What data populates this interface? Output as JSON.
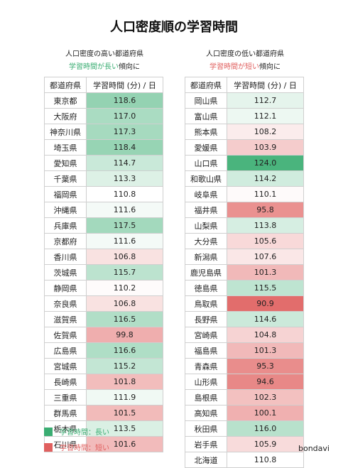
{
  "title": "人口密度順の学習時間",
  "colors": {
    "long": "#3aad72",
    "short": "#e0605f",
    "neutral": "#ffffff"
  },
  "chart_data": [
    {
      "type": "table",
      "subtitle_line1": "人口密度の高い都道府県",
      "subtitle_accent": "学習時間が長い",
      "subtitle_suffix": "傾向に",
      "columns": [
        "都道府県",
        "学習時間 (分) / 日"
      ],
      "rows": [
        [
          "東京都",
          118.6
        ],
        [
          "大阪府",
          117.0
        ],
        [
          "神奈川県",
          117.3
        ],
        [
          "埼玉県",
          118.4
        ],
        [
          "愛知県",
          114.7
        ],
        [
          "千葉県",
          113.3
        ],
        [
          "福岡県",
          110.8
        ],
        [
          "沖縄県",
          111.6
        ],
        [
          "兵庫県",
          117.5
        ],
        [
          "京都府",
          111.6
        ],
        [
          "香川県",
          106.8
        ],
        [
          "茨城県",
          115.7
        ],
        [
          "静岡県",
          110.2
        ],
        [
          "奈良県",
          106.8
        ],
        [
          "滋賀県",
          116.5
        ],
        [
          "佐賀県",
          99.8
        ],
        [
          "広島県",
          116.6
        ],
        [
          "宮城県",
          115.2
        ],
        [
          "長崎県",
          101.8
        ],
        [
          "三重県",
          111.9
        ],
        [
          "群馬県",
          101.5
        ],
        [
          "栃木県",
          113.5
        ],
        [
          "石川県",
          101.6
        ]
      ]
    },
    {
      "type": "table",
      "subtitle_line1": "人口密度の低い都道府県",
      "subtitle_accent": "学習時間が短い",
      "subtitle_suffix": "傾向に",
      "columns": [
        "都道府県",
        "学習時間 (分) / 日"
      ],
      "rows": [
        [
          "岡山県",
          112.7
        ],
        [
          "富山県",
          112.1
        ],
        [
          "熊本県",
          108.2
        ],
        [
          "愛媛県",
          103.9
        ],
        [
          "山口県",
          124.0
        ],
        [
          "和歌山県",
          114.2
        ],
        [
          "岐阜県",
          110.1
        ],
        [
          "福井県",
          95.8
        ],
        [
          "山梨県",
          113.8
        ],
        [
          "大分県",
          105.6
        ],
        [
          "新潟県",
          107.6
        ],
        [
          "鹿児島県",
          101.3
        ],
        [
          "徳島県",
          115.5
        ],
        [
          "鳥取県",
          90.9
        ],
        [
          "長野県",
          114.6
        ],
        [
          "宮崎県",
          104.8
        ],
        [
          "福島県",
          101.3
        ],
        [
          "青森県",
          95.3
        ],
        [
          "山形県",
          94.6
        ],
        [
          "島根県",
          102.3
        ],
        [
          "高知県",
          100.1
        ],
        [
          "秋田県",
          116.0
        ],
        [
          "岩手県",
          105.9
        ],
        [
          "北海道",
          110.8
        ]
      ]
    }
  ],
  "legend": [
    {
      "label": "学習時間：長い",
      "color": "#3aad72"
    },
    {
      "label": "学習時間：短い",
      "color": "#e0605f"
    }
  ],
  "brand": "bondavi"
}
